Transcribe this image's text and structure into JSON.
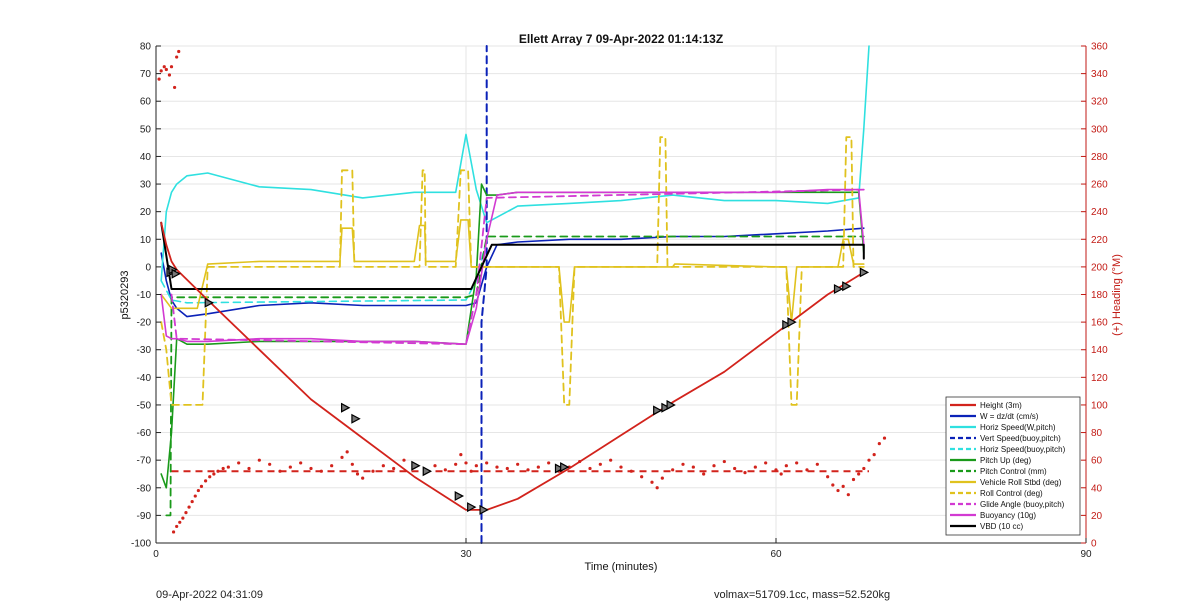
{
  "chart_data": {
    "type": "line",
    "title": "Ellett Array 7 09-Apr-2022 01:14:13Z",
    "xlabel": "Time (minutes)",
    "ylabel": "p5320293",
    "ylabel_right": "(+) Heading (°M)",
    "xlim": [
      0,
      90
    ],
    "ylim": [
      -100,
      80
    ],
    "ylim_right": [
      0,
      360
    ],
    "x_ticks": [
      0,
      30,
      60,
      90
    ],
    "y_ticks": [
      -100,
      -90,
      -80,
      -70,
      -60,
      -50,
      -40,
      -30,
      -20,
      -10,
      0,
      10,
      20,
      30,
      40,
      50,
      60,
      70,
      80
    ],
    "y_ticks_right": [
      0,
      20,
      40,
      60,
      80,
      100,
      120,
      140,
      160,
      180,
      200,
      220,
      240,
      260,
      280,
      300,
      320,
      340,
      360
    ],
    "grid": true,
    "legend_position": "bottom-right",
    "colors": {
      "red": "#d2231c",
      "blue": "#0b22b8",
      "cyan": "#2fe0e0",
      "green": "#1a9a1a",
      "yellow": "#e0c21e",
      "magenta": "#d23ad2",
      "black": "#000000",
      "heading_axis": "#c21a14"
    },
    "series": [
      {
        "name": "Height (3m)",
        "color": "red",
        "dash": false,
        "width": 1.8,
        "x": [
          0.5,
          1,
          1.5,
          2,
          5,
          10,
          15,
          20,
          25,
          30,
          32,
          35,
          40,
          45,
          50,
          55,
          60,
          65,
          68.5
        ],
        "y": [
          16,
          8,
          2,
          -1,
          -12,
          -30,
          -48,
          -62,
          -76,
          -88,
          -88,
          -84,
          -73,
          -61,
          -49,
          -38,
          -24,
          -10,
          -2
        ]
      },
      {
        "name": "W = dz/dt (cm/s)",
        "color": "blue",
        "dash": false,
        "width": 1.6,
        "x": [
          0.5,
          1,
          1.5,
          2,
          3,
          5,
          10,
          15,
          20,
          25,
          30,
          31,
          32,
          33,
          35,
          40,
          45,
          50,
          55,
          60,
          65,
          68.5
        ],
        "y": [
          5,
          -5,
          -12,
          -15,
          -18,
          -17,
          -14,
          -13,
          -14,
          -14,
          -14,
          -13,
          0,
          8,
          9,
          10,
          10,
          11,
          11,
          12,
          13,
          14
        ]
      },
      {
        "name": "Horiz Speed(W,pitch)",
        "color": "cyan",
        "dash": false,
        "width": 1.6,
        "x": [
          0.5,
          1,
          1.5,
          2,
          3,
          5,
          10,
          15,
          20,
          25,
          29,
          30,
          31,
          32,
          33,
          35,
          40,
          45,
          50,
          55,
          60,
          65,
          68,
          68.5,
          69
        ],
        "y": [
          -5,
          20,
          27,
          30,
          33,
          34,
          29,
          28,
          25,
          27,
          27,
          48,
          28,
          16,
          18,
          22,
          23,
          24,
          26,
          24,
          24,
          23,
          25,
          50,
          80
        ]
      },
      {
        "name": "Vert Speed(buoy,pitch)",
        "color": "blue",
        "dash": true,
        "width": 2,
        "x": [
          31.5,
          31.5,
          32,
          32
        ],
        "y": [
          -100,
          -20,
          0,
          80
        ]
      },
      {
        "name": "Horiz Speed(buoy,pitch)",
        "color": "cyan",
        "dash": true,
        "width": 1.6,
        "x": [
          0.5,
          1.5,
          3,
          30,
          31,
          32
        ],
        "y": [
          -5,
          -12,
          -13,
          -12,
          -5,
          10
        ]
      },
      {
        "name": "Pitch Up (deg)",
        "color": "green",
        "dash": false,
        "width": 1.6,
        "x": [
          0.5,
          1,
          1.5,
          2,
          3,
          5,
          10,
          15,
          20,
          25,
          30,
          31,
          31.5,
          32,
          33,
          35,
          40,
          45,
          50,
          55,
          60,
          65,
          68,
          68.5
        ],
        "y": [
          -75,
          -80,
          -60,
          -26,
          -28,
          -28,
          -27,
          -27,
          -27,
          -27,
          -28,
          -3,
          30,
          26,
          26,
          27,
          27,
          27,
          27,
          27,
          27,
          27,
          27,
          5
        ]
      },
      {
        "name": "Pitch Control (mm)",
        "color": "green",
        "dash": true,
        "width": 1.8,
        "x": [
          1,
          1.4,
          1.5,
          30,
          31,
          32,
          68.5
        ],
        "y": [
          -90,
          -90,
          -11,
          -11,
          -10,
          11,
          11
        ]
      },
      {
        "name": "Vehicle Roll Stbd (deg)",
        "color": "yellow",
        "dash": false,
        "width": 1.6,
        "x": [
          0.5,
          1.5,
          4,
          5,
          10,
          15,
          17.8,
          18,
          19,
          19.2,
          20,
          25,
          25.5,
          26,
          26.1,
          29,
          29.5,
          30.2,
          30.5,
          32,
          39,
          39.5,
          40,
          40.5,
          50,
          50.2,
          50.5,
          60,
          61,
          61.5,
          62,
          66,
          66.5,
          67,
          67.5,
          68.5
        ],
        "y": [
          -10,
          -15,
          -15,
          1,
          2,
          2,
          2,
          14,
          14,
          2,
          2,
          2,
          15,
          15,
          2,
          2,
          17,
          17,
          0,
          0,
          0,
          -20,
          -20,
          0,
          0,
          1,
          1,
          0,
          0,
          -20,
          0,
          0,
          10,
          10,
          1,
          1
        ]
      },
      {
        "name": "Roll Control (deg)",
        "color": "yellow",
        "dash": true,
        "width": 1.8,
        "x": [
          0.5,
          1,
          1.5,
          4.5,
          5,
          17.8,
          18,
          19,
          19.2,
          25.5,
          25.8,
          26,
          26.1,
          29,
          29.5,
          30.2,
          30.5,
          39,
          39.5,
          40,
          40.5,
          48.5,
          48.8,
          49.3,
          49.5,
          61,
          61.5,
          62,
          62.5,
          66.5,
          66.8,
          67.3,
          67.5,
          68.5
        ],
        "y": [
          -20,
          -30,
          -50,
          -50,
          0,
          0,
          35,
          35,
          0,
          0,
          35,
          35,
          0,
          0,
          35,
          35,
          0,
          0,
          -50,
          -50,
          0,
          0,
          47,
          47,
          0,
          0,
          -50,
          -50,
          0,
          0,
          47,
          47,
          0,
          0
        ]
      },
      {
        "name": "Glide Angle (buoy,pitch)",
        "color": "magenta",
        "dash": true,
        "width": 1.8,
        "x": [
          1.5,
          2,
          30,
          31,
          32,
          68.5
        ],
        "y": [
          -10,
          -26,
          -28,
          -10,
          25,
          28
        ]
      },
      {
        "name": "Buoyancy (10g)",
        "color": "magenta",
        "dash": false,
        "width": 1.6,
        "x": [
          0.5,
          1,
          1.5,
          2,
          3,
          5,
          10,
          15,
          20,
          25,
          30,
          31,
          32,
          33,
          35,
          40,
          45,
          50,
          55,
          60,
          65,
          68,
          68.5
        ],
        "y": [
          -10,
          -25,
          -26,
          -26,
          -27,
          -27,
          -26,
          -26,
          -27,
          -27,
          -28,
          -15,
          10,
          26,
          27,
          27,
          27,
          27,
          27,
          27,
          28,
          28,
          8
        ]
      },
      {
        "name": "VBD (10 cc)",
        "color": "black",
        "dash": false,
        "width": 2,
        "x": [
          0.5,
          1.5,
          30.5,
          32.5,
          68.5,
          68.5
        ],
        "y": [
          16,
          -8,
          -8,
          8,
          8,
          3
        ]
      }
    ],
    "heading_points": [
      [
        0.3,
        336
      ],
      [
        0.5,
        342
      ],
      [
        0.8,
        345
      ],
      [
        1.0,
        343
      ],
      [
        1.3,
        339
      ],
      [
        1.5,
        345
      ],
      [
        1.8,
        330
      ],
      [
        2.0,
        352
      ],
      [
        2.2,
        356
      ],
      [
        1.7,
        8
      ],
      [
        2.0,
        12
      ],
      [
        2.3,
        15
      ],
      [
        2.6,
        18
      ],
      [
        2.9,
        22
      ],
      [
        3.2,
        26
      ],
      [
        3.5,
        30
      ],
      [
        3.8,
        34
      ],
      [
        4.1,
        38
      ],
      [
        4.4,
        41
      ],
      [
        4.8,
        45
      ],
      [
        5.2,
        48
      ],
      [
        5.6,
        50
      ],
      [
        6.0,
        52
      ],
      [
        6.5,
        54
      ],
      [
        7,
        55
      ],
      [
        8,
        58
      ],
      [
        9,
        54
      ],
      [
        10,
        60
      ],
      [
        11,
        57
      ],
      [
        12,
        52
      ],
      [
        13,
        55
      ],
      [
        14,
        58
      ],
      [
        15,
        54
      ],
      [
        16,
        52
      ],
      [
        17,
        56
      ],
      [
        18,
        62
      ],
      [
        18.5,
        66
      ],
      [
        19,
        57
      ],
      [
        19.5,
        50
      ],
      [
        20,
        47
      ],
      [
        21,
        52
      ],
      [
        22,
        56
      ],
      [
        23,
        54
      ],
      [
        24,
        60
      ],
      [
        25,
        55
      ],
      [
        26,
        51
      ],
      [
        27,
        56
      ],
      [
        28,
        53
      ],
      [
        29,
        57
      ],
      [
        29.5,
        64
      ],
      [
        30,
        58
      ],
      [
        30.5,
        52
      ],
      [
        31,
        56
      ],
      [
        32,
        58
      ],
      [
        33,
        55
      ],
      [
        34,
        54
      ],
      [
        35,
        57
      ],
      [
        36,
        53
      ],
      [
        37,
        55
      ],
      [
        38,
        58
      ],
      [
        39,
        52
      ],
      [
        40,
        55
      ],
      [
        41,
        59
      ],
      [
        42,
        54
      ],
      [
        43,
        57
      ],
      [
        44,
        60
      ],
      [
        45,
        55
      ],
      [
        46,
        52
      ],
      [
        47,
        48
      ],
      [
        48,
        44
      ],
      [
        48.5,
        40
      ],
      [
        49,
        47
      ],
      [
        50,
        53
      ],
      [
        51,
        57
      ],
      [
        52,
        55
      ],
      [
        53,
        50
      ],
      [
        54,
        56
      ],
      [
        55,
        59
      ],
      [
        56,
        54
      ],
      [
        57,
        51
      ],
      [
        58,
        55
      ],
      [
        59,
        58
      ],
      [
        60,
        53
      ],
      [
        60.5,
        50
      ],
      [
        61,
        56
      ],
      [
        62,
        58
      ],
      [
        63,
        53
      ],
      [
        64,
        57
      ],
      [
        65,
        48
      ],
      [
        65.5,
        42
      ],
      [
        66,
        38
      ],
      [
        66.5,
        41
      ],
      [
        67,
        35
      ],
      [
        67.5,
        46
      ],
      [
        68,
        50
      ],
      [
        68.5,
        54
      ],
      [
        69,
        60
      ],
      [
        69.5,
        64
      ],
      [
        70,
        72
      ],
      [
        70.5,
        76
      ]
    ],
    "heading_mean": {
      "value": 52,
      "x_range": [
        1.5,
        69
      ]
    },
    "markers": [
      [
        1.4,
        -2
      ],
      [
        1.6,
        -1
      ],
      [
        1.9,
        -2.5
      ],
      [
        5.1,
        -13
      ],
      [
        18.3,
        -51
      ],
      [
        19.3,
        -55
      ],
      [
        25.1,
        -72
      ],
      [
        26.2,
        -74
      ],
      [
        29.3,
        -83
      ],
      [
        30.5,
        -87
      ],
      [
        31.7,
        -88
      ],
      [
        39,
        -73
      ],
      [
        39.5,
        -72.5
      ],
      [
        48.5,
        -52
      ],
      [
        49.3,
        -51
      ],
      [
        49.8,
        -50
      ],
      [
        61,
        -21
      ],
      [
        61.5,
        -20
      ],
      [
        66,
        -8
      ],
      [
        66.8,
        -7
      ],
      [
        68.5,
        -2
      ]
    ]
  },
  "footer": {
    "left": "09-Apr-2022 04:31:09",
    "right": "volmax=51709.1cc, mass=52.520kg"
  }
}
